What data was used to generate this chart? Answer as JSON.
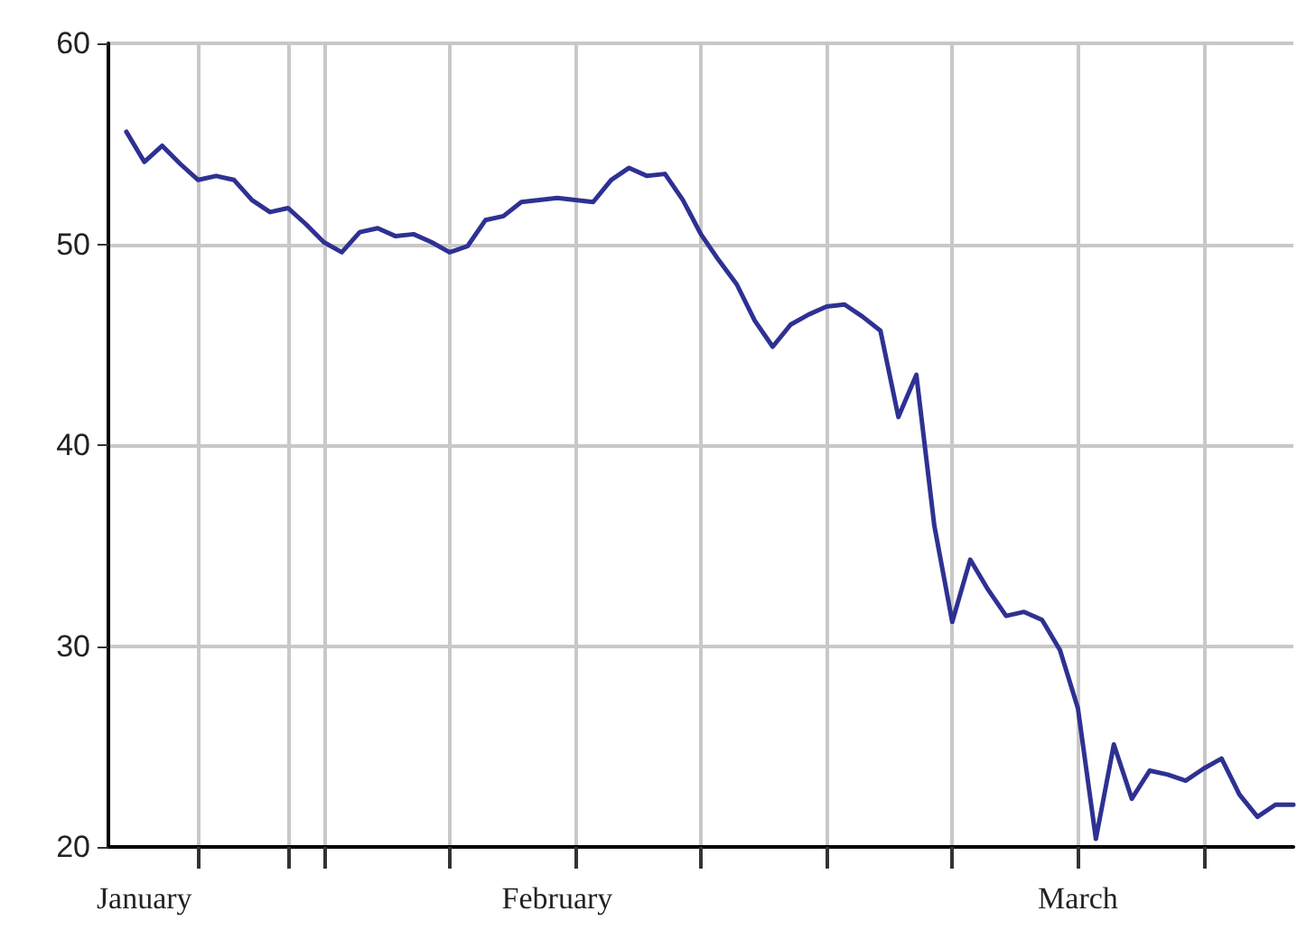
{
  "chart_data": {
    "type": "line",
    "color": "#2e3192",
    "line_style": "solid",
    "marker": "none",
    "grid": true,
    "x": [
      "--01-23",
      "--01-24",
      "--01-25",
      "--01-26",
      "--01-27",
      "--01-28",
      "--01-29",
      "--01-30",
      "--01-31",
      "--02-01",
      "--02-02",
      "--02-03",
      "--02-04",
      "--02-05",
      "--02-06",
      "--02-07",
      "--02-08",
      "--02-09",
      "--02-10",
      "--02-11",
      "--02-12",
      "--02-13",
      "--02-14",
      "--02-15",
      "--02-16",
      "--02-17",
      "--02-18",
      "--02-19",
      "--02-20",
      "--02-21",
      "--02-22",
      "--02-23",
      "--02-24",
      "--02-25",
      "--02-26",
      "--02-27",
      "--02-28",
      "--02-29",
      "--03-01",
      "--03-02",
      "--03-03",
      "--03-04",
      "--03-05",
      "--03-06",
      "--03-07",
      "--03-08",
      "--03-09",
      "--03-10",
      "--03-11",
      "--03-12",
      "--03-13",
      "--03-14",
      "--03-15",
      "--03-16",
      "--03-17",
      "--03-18",
      "--03-19",
      "--03-20",
      "--03-21",
      "--03-22",
      "--03-23",
      "--03-24",
      "--03-25",
      "--03-26",
      "--03-27",
      "--03-28"
    ],
    "values": [
      55.6,
      54.1,
      54.9,
      54.0,
      53.2,
      53.4,
      53.2,
      52.2,
      51.6,
      51.8,
      51.0,
      50.1,
      49.6,
      50.6,
      50.8,
      50.4,
      50.5,
      50.1,
      49.6,
      49.9,
      51.2,
      51.4,
      52.1,
      52.2,
      52.3,
      52.2,
      52.1,
      53.2,
      53.8,
      53.4,
      53.5,
      52.2,
      50.5,
      49.2,
      48.0,
      46.2,
      44.9,
      46.0,
      46.5,
      46.9,
      47.0,
      46.4,
      45.7,
      41.4,
      43.5,
      36.0,
      31.2,
      34.3,
      32.8,
      31.5,
      31.7,
      31.3,
      29.8,
      26.9,
      20.4,
      25.1,
      22.4,
      23.8,
      23.6,
      23.3,
      23.9,
      24.4,
      22.6,
      21.5,
      22.1,
      22.1
    ],
    "xlim": [
      "--01-22",
      "--03-28"
    ],
    "xticks": [
      {
        "value": "--01-24",
        "label": "January"
      },
      {
        "value": "--02-16",
        "label": "February"
      },
      {
        "value": "--03-16",
        "label": "March"
      },
      {
        "value": "--02-01",
        "label": null
      },
      {
        "value": "--01-27",
        "label": null
      },
      {
        "value": "--02-03",
        "label": null
      },
      {
        "value": "--02-10",
        "label": null
      },
      {
        "value": "--02-17",
        "label": null
      },
      {
        "value": "--02-24",
        "label": null
      },
      {
        "value": "--03-02",
        "label": null
      },
      {
        "value": "--03-09",
        "label": null
      },
      {
        "value": "--03-16",
        "label": null
      },
      {
        "value": "--03-23",
        "label": null
      }
    ],
    "ylim": [
      20,
      60
    ],
    "yticks": [
      20,
      30,
      40,
      50,
      60
    ]
  }
}
